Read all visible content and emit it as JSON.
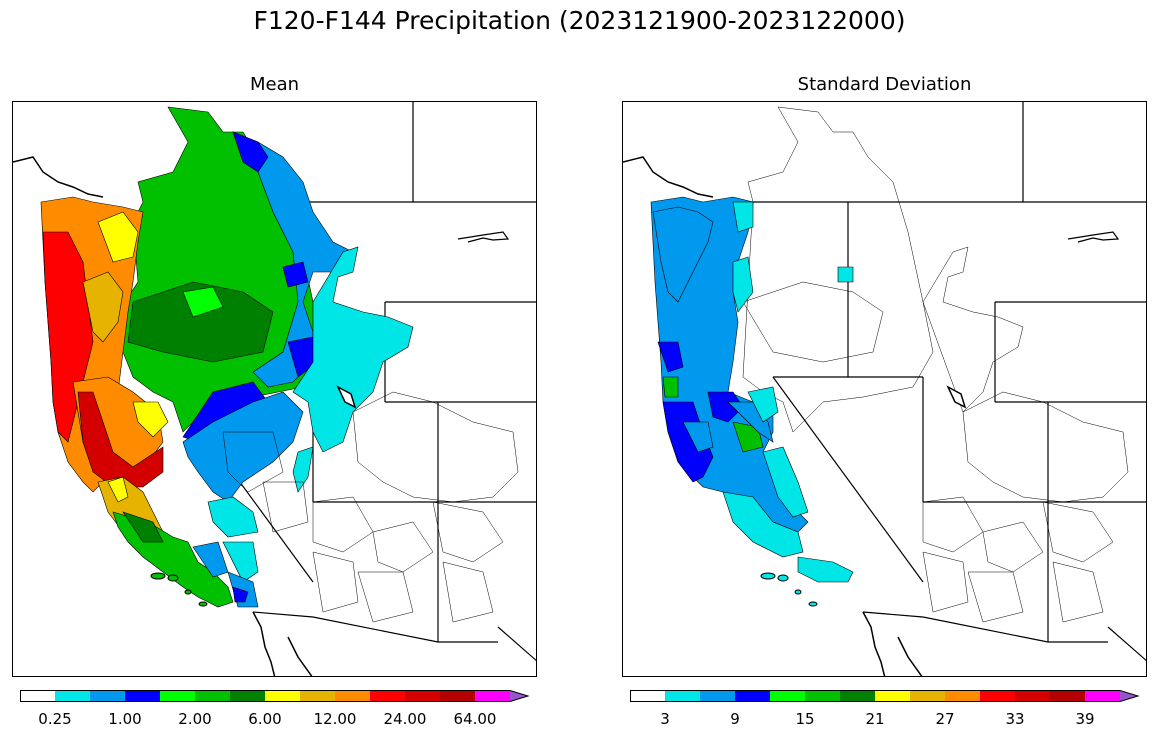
{
  "figure": {
    "suptitle": "F120-F144 Precipitation (2023121900-2023122000)"
  },
  "panels": [
    {
      "title": "Mean",
      "colorbar": {
        "colors": [
          "#ffffff",
          "#00e5e5",
          "#0099ee",
          "#0000ff",
          "#00ff00",
          "#00c000",
          "#008000",
          "#ffff00",
          "#e6b400",
          "#ff8c00",
          "#ff0000",
          "#d40000",
          "#b40000",
          "#ff00ff",
          "#9955cc"
        ],
        "tick_labels": [
          "0.25",
          "1.00",
          "2.00",
          "6.00",
          "12.00",
          "24.00",
          "64.00"
        ],
        "extend": "max"
      }
    },
    {
      "title": "Standard Deviation",
      "colorbar": {
        "colors": [
          "#ffffff",
          "#00e5e5",
          "#0099ee",
          "#0000ff",
          "#00ff00",
          "#00c000",
          "#008000",
          "#ffff00",
          "#e6b400",
          "#ff8c00",
          "#ff0000",
          "#d40000",
          "#b40000",
          "#ff00ff",
          "#9955cc"
        ],
        "tick_labels": [
          "3",
          "9",
          "15",
          "21",
          "27",
          "33",
          "39"
        ],
        "extend": "max"
      }
    }
  ]
}
